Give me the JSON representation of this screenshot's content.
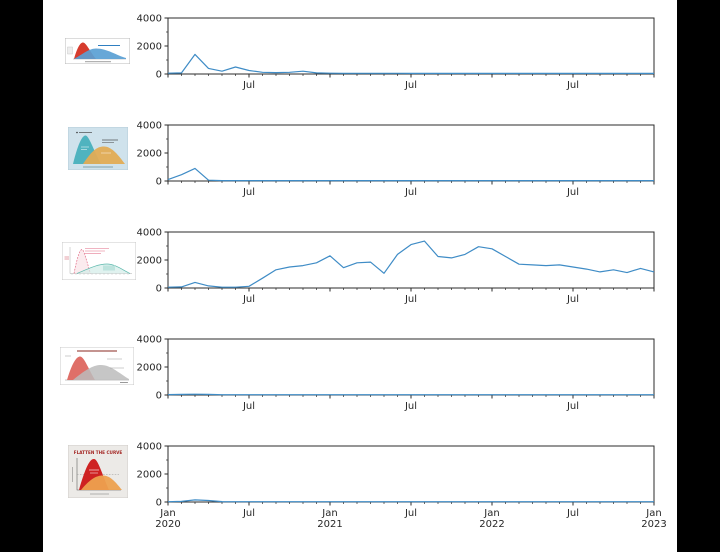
{
  "figure": {
    "background": "#000000",
    "plot_background": "#ffffff",
    "line_color": "#3f8cc6",
    "spine_color": "#2b2b2b",
    "tick_label_color": "#262626",
    "ylim": [
      0,
      4000
    ],
    "x_months_total": 36,
    "y_major_ticks": [
      {
        "value": 0,
        "label": "0"
      },
      {
        "value": 2000,
        "label": "2000"
      },
      {
        "value": 4000,
        "label": "4000"
      }
    ],
    "y_minor_ticks": [
      1000,
      3000
    ]
  },
  "chart_data": [
    {
      "type": "line",
      "name": "meme-1-volume-over-time",
      "x_start": "2020-01",
      "x_end": "2023-01",
      "x_ticks": [
        {
          "month": 0
        },
        {
          "month": 6,
          "label": "Jul"
        },
        {
          "month": 12
        },
        {
          "month": 18,
          "label": "Jul"
        },
        {
          "month": 24
        },
        {
          "month": 30,
          "label": "Jul"
        },
        {
          "month": 36
        }
      ],
      "values": [
        60,
        80,
        1400,
        400,
        200,
        500,
        250,
        120,
        100,
        120,
        200,
        80,
        60,
        50,
        50,
        50,
        50,
        50,
        40,
        40,
        40,
        40,
        40,
        40,
        40,
        40,
        40,
        40,
        40,
        40,
        40,
        40,
        40,
        40,
        40,
        40,
        40
      ]
    },
    {
      "type": "line",
      "name": "meme-2-volume-over-time",
      "x_start": "2020-01",
      "x_end": "2023-01",
      "x_ticks": [
        {
          "month": 0
        },
        {
          "month": 6,
          "label": "Jul"
        },
        {
          "month": 12
        },
        {
          "month": 18,
          "label": "Jul"
        },
        {
          "month": 24
        },
        {
          "month": 30,
          "label": "Jul"
        },
        {
          "month": 36
        }
      ],
      "values": [
        100,
        450,
        900,
        60,
        30,
        30,
        30,
        30,
        30,
        30,
        30,
        30,
        30,
        30,
        30,
        30,
        30,
        30,
        30,
        30,
        30,
        30,
        30,
        30,
        30,
        30,
        30,
        30,
        30,
        30,
        30,
        30,
        30,
        30,
        30,
        30,
        30
      ]
    },
    {
      "type": "line",
      "name": "meme-3-volume-over-time",
      "x_start": "2020-01",
      "x_end": "2023-01",
      "x_ticks": [
        {
          "month": 0
        },
        {
          "month": 6,
          "label": "Jul"
        },
        {
          "month": 12
        },
        {
          "month": 18,
          "label": "Jul"
        },
        {
          "month": 24
        },
        {
          "month": 30,
          "label": "Jul"
        },
        {
          "month": 36
        }
      ],
      "values": [
        60,
        80,
        400,
        150,
        60,
        60,
        120,
        700,
        1300,
        1500,
        1600,
        1800,
        2300,
        1450,
        1800,
        1850,
        1050,
        2400,
        3100,
        3350,
        2250,
        2150,
        2400,
        2950,
        2800,
        2250,
        1700,
        1650,
        1600,
        1650,
        1500,
        1350,
        1150,
        1300,
        1100,
        1400,
        1150
      ]
    },
    {
      "type": "line",
      "name": "meme-4-volume-over-time",
      "x_start": "2020-01",
      "x_end": "2023-01",
      "x_ticks": [
        {
          "month": 0
        },
        {
          "month": 6,
          "label": "Jul"
        },
        {
          "month": 12
        },
        {
          "month": 18,
          "label": "Jul"
        },
        {
          "month": 24
        },
        {
          "month": 30,
          "label": "Jul"
        },
        {
          "month": 36
        }
      ],
      "values": [
        30,
        40,
        60,
        40,
        20,
        20,
        20,
        20,
        20,
        20,
        20,
        20,
        20,
        20,
        20,
        20,
        20,
        20,
        20,
        20,
        20,
        20,
        20,
        20,
        20,
        20,
        20,
        20,
        20,
        20,
        20,
        20,
        20,
        20,
        20,
        20,
        20
      ]
    },
    {
      "type": "line",
      "name": "meme-5-volume-over-time",
      "x_start": "2020-01",
      "x_end": "2023-01",
      "x_ticks": [
        {
          "month": 0,
          "label": "Jan",
          "year": "2020"
        },
        {
          "month": 6,
          "label": "Jul"
        },
        {
          "month": 12,
          "label": "Jan",
          "year": "2021"
        },
        {
          "month": 18,
          "label": "Jul"
        },
        {
          "month": 24,
          "label": "Jan",
          "year": "2022"
        },
        {
          "month": 30,
          "label": "Jul"
        },
        {
          "month": 36,
          "label": "Jan",
          "year": "2023"
        }
      ],
      "values": [
        20,
        40,
        150,
        110,
        30,
        20,
        20,
        20,
        20,
        20,
        20,
        20,
        20,
        20,
        20,
        20,
        20,
        20,
        20,
        20,
        20,
        20,
        20,
        20,
        20,
        20,
        20,
        20,
        20,
        20,
        20,
        20,
        20,
        20,
        20,
        20,
        20
      ]
    }
  ],
  "thumbnails": [
    {
      "name": "flatten-curve-red-blue-meme"
    },
    {
      "name": "flatten-curve-teal-orange-meme"
    },
    {
      "name": "flatten-curve-pink-teal-chart"
    },
    {
      "name": "flatten-curve-red-gray-chart"
    },
    {
      "name": "flatten-the-curve-poster",
      "title": "FLATTEN THE CURVE"
    }
  ]
}
